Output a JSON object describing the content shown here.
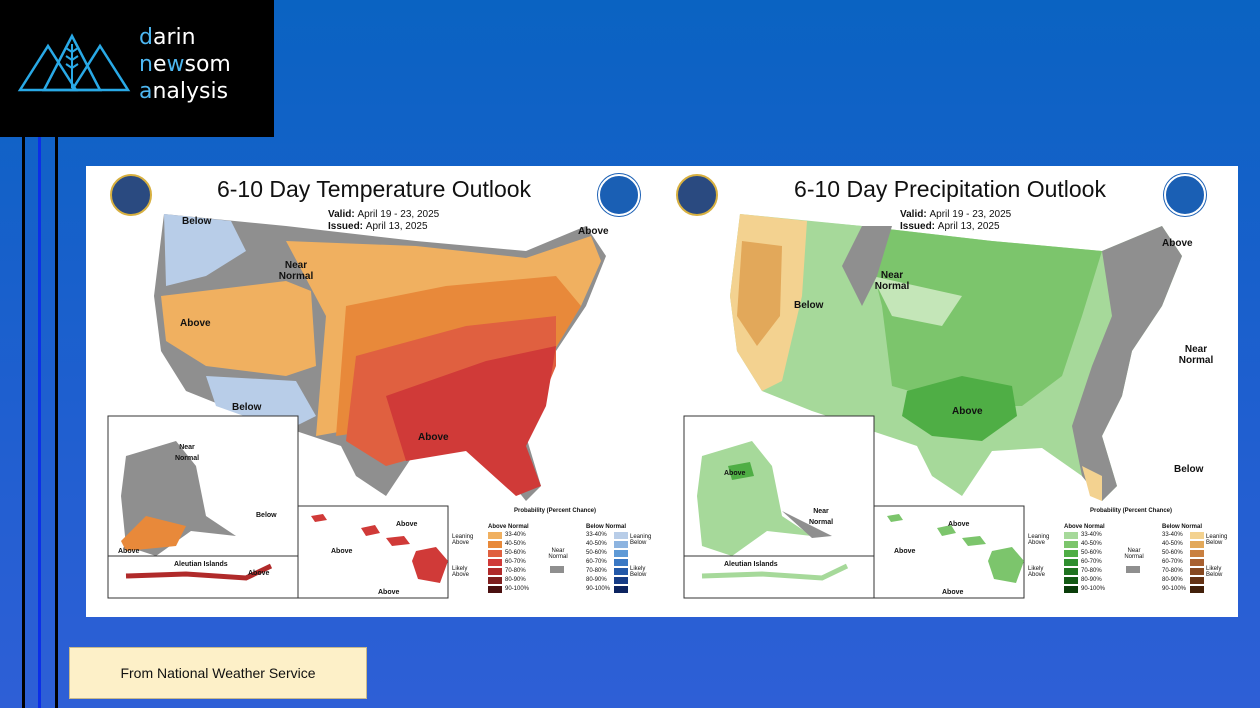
{
  "logo": {
    "line1_first": "d",
    "line1_rest": "arin",
    "line2_first": "n",
    "line2_mid": "e",
    "line2_acc": "w",
    "line2_rest": "som",
    "line3_first": "a",
    "line3_rest": "nalysis"
  },
  "temperature_map": {
    "title": "6-10 Day Temperature Outlook",
    "valid_label": "Valid:",
    "valid_value": "April 19 - 23, 2025",
    "issued_label": "Issued:",
    "issued_value": "April 13, 2025",
    "labels": {
      "below_nw": "Below",
      "near_normal": "Near Normal",
      "above_ne": "Above",
      "above_west": "Above",
      "below_sw": "Below",
      "above_south": "Above",
      "ak_near_normal": "Near Normal",
      "ak_below": "Below",
      "ak_above": "Above",
      "aleutian": "Aleutian Islands",
      "aleutian_above": "Above",
      "hi_above1": "Above",
      "hi_above2": "Above",
      "hi_above3": "Above"
    },
    "legend": {
      "title": "Probability (Percent Chance)",
      "above_normal": "Above Normal",
      "below_normal": "Below Normal",
      "leaning_above": "Leaning Above",
      "likely_above": "Likely Above",
      "leaning_below": "Leaning Below",
      "likely_below": "Likely Below",
      "near_normal": "Near Normal",
      "ranges": [
        "33-40%",
        "40-50%",
        "50-60%",
        "60-70%",
        "70-80%",
        "80-90%",
        "90-100%"
      ],
      "above_colors": [
        "#f0b060",
        "#e8893a",
        "#e06040",
        "#d03a38",
        "#b02a2a",
        "#7e1e1e",
        "#4a1010"
      ],
      "below_colors": [
        "#b8cde8",
        "#8db4e0",
        "#5f9ad6",
        "#3a78c4",
        "#2358a8",
        "#163c86",
        "#0c2460"
      ]
    }
  },
  "precipitation_map": {
    "title": "6-10 Day Precipitation Outlook",
    "valid_label": "Valid:",
    "valid_value": "April 19 - 23, 2025",
    "issued_label": "Issued:",
    "issued_value": "April 13, 2025",
    "labels": {
      "above_ne": "Above",
      "near_normal": "Near Normal",
      "below_west": "Below",
      "near_east": "Near Normal",
      "above_central": "Above",
      "below_fl": "Below",
      "ak_above": "Above",
      "ak_near": "Near Normal",
      "aleutian": "Aleutian Islands",
      "hi_above1": "Above",
      "hi_above2": "Above",
      "hi_above3": "Above"
    },
    "legend": {
      "title": "Probability (Percent Chance)",
      "above_normal": "Above Normal",
      "below_normal": "Below Normal",
      "leaning_above": "Leaning Above",
      "likely_above": "Likely Above",
      "leaning_below": "Leaning Below",
      "likely_below": "Likely Below",
      "near_normal": "Near Normal",
      "ranges": [
        "33-40%",
        "40-50%",
        "50-60%",
        "60-70%",
        "70-80%",
        "80-90%",
        "90-100%"
      ],
      "above_colors": [
        "#a6d99a",
        "#7cc56c",
        "#4fae45",
        "#2f8f2f",
        "#1f7320",
        "#135a14",
        "#0a3d0a"
      ],
      "below_colors": [
        "#f3d290",
        "#e2a85a",
        "#c98040",
        "#a86030",
        "#864820",
        "#643214",
        "#42200a"
      ]
    }
  },
  "colors": {
    "near_normal_gray": "#8f8f8f",
    "temp_leaning_above": "#f0b060",
    "temp_likely_above": "#d03a38",
    "precip_leaning_above": "#a6d99a",
    "precip_likely_above": "#4fae45"
  },
  "source_caption": "From National Weather Service"
}
